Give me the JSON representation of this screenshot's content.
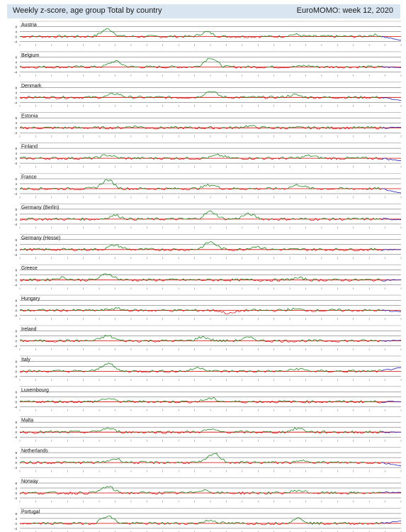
{
  "header": {
    "title": "Weekly z-score, age group Total by country",
    "week_label": "EuroMOMO: week 12, 2020"
  },
  "colors": {
    "header_bg": "#d9e6f2",
    "grid": "#000000",
    "baseline": "#cc0000",
    "positive": "#007700",
    "negative": "#cc0000",
    "recent": "#0000aa"
  },
  "chart_data": {
    "type": "line",
    "title": "Weekly z-score, age group Total by country",
    "ylabel": "",
    "y_ticks": [
      "8",
      "4",
      "0",
      "-4"
    ],
    "ylim": [
      -6,
      10
    ],
    "x_points": 220,
    "recent_weeks": 12,
    "panels": [
      {
        "name": "Austria",
        "peaks": [
          [
            0.23,
            6.0
          ],
          [
            0.49,
            3.5
          ],
          [
            0.72,
            1.6
          ],
          [
            0.93,
            1.2
          ]
        ],
        "end": -3.0
      },
      {
        "name": "Belgium",
        "peaks": [
          [
            0.25,
            4.5
          ],
          [
            0.5,
            7.5
          ],
          [
            0.75,
            1.0
          ]
        ],
        "end": -0.5
      },
      {
        "name": "Denmark",
        "peaks": [
          [
            0.25,
            3.0
          ],
          [
            0.5,
            5.0
          ],
          [
            0.72,
            2.0
          ]
        ],
        "end": -2.5
      },
      {
        "name": "Estonia",
        "peaks": [
          [
            0.3,
            1.2
          ],
          [
            0.6,
            1.5
          ]
        ],
        "end": 0.5
      },
      {
        "name": "Finland",
        "peaks": [
          [
            0.23,
            2.5
          ],
          [
            0.52,
            2.3
          ],
          [
            0.76,
            2.0
          ]
        ],
        "end": -2.0
      },
      {
        "name": "France",
        "peaks": [
          [
            0.23,
            7.0
          ],
          [
            0.5,
            3.0
          ],
          [
            0.73,
            3.0
          ]
        ],
        "end": -3.5
      },
      {
        "name": "Germany (Berlin)",
        "peaks": [
          [
            0.25,
            3.0
          ],
          [
            0.5,
            6.0
          ],
          [
            0.6,
            4.0
          ]
        ],
        "end": -0.5
      },
      {
        "name": "Germany (Hesse)",
        "peaks": [
          [
            0.25,
            3.5
          ],
          [
            0.5,
            6.0
          ],
          [
            0.62,
            2.5
          ]
        ],
        "end": 0.0
      },
      {
        "name": "Greece",
        "peaks": [
          [
            0.23,
            5.0
          ],
          [
            0.11,
            2.0
          ],
          [
            0.73,
            1.5
          ]
        ],
        "end": 0.0
      },
      {
        "name": "Hungary",
        "peaks": [
          [
            0.25,
            1.5
          ],
          [
            0.55,
            -2.5
          ],
          [
            0.72,
            1.0
          ]
        ],
        "end": -1.0
      },
      {
        "name": "Ireland",
        "peaks": [
          [
            0.23,
            4.0
          ],
          [
            0.48,
            3.0
          ],
          [
            0.6,
            2.5
          ]
        ],
        "end": 0.5
      },
      {
        "name": "Italy",
        "peaks": [
          [
            0.23,
            6.5
          ],
          [
            0.47,
            3.0
          ],
          [
            0.73,
            2.0
          ]
        ],
        "end": 3.0
      },
      {
        "name": "Luxembourg",
        "peaks": [
          [
            0.23,
            2.5
          ],
          [
            0.5,
            2.5
          ]
        ],
        "end": 0.0
      },
      {
        "name": "Malta",
        "peaks": [
          [
            0.23,
            3.0
          ],
          [
            0.5,
            2.0
          ],
          [
            0.73,
            3.0
          ]
        ],
        "end": 0.0
      },
      {
        "name": "Netherlands",
        "peaks": [
          [
            0.25,
            3.0
          ],
          [
            0.51,
            7.0
          ],
          [
            0.75,
            1.5
          ]
        ],
        "end": -2.5
      },
      {
        "name": "Norway",
        "peaks": [
          [
            0.23,
            5.0
          ],
          [
            0.48,
            2.5
          ],
          [
            0.73,
            2.0
          ]
        ],
        "end": 0.5
      },
      {
        "name": "Portugal",
        "peaks": [
          [
            0.23,
            6.0
          ],
          [
            0.5,
            2.5
          ],
          [
            0.73,
            4.0
          ]
        ],
        "end": 2.0
      }
    ]
  }
}
